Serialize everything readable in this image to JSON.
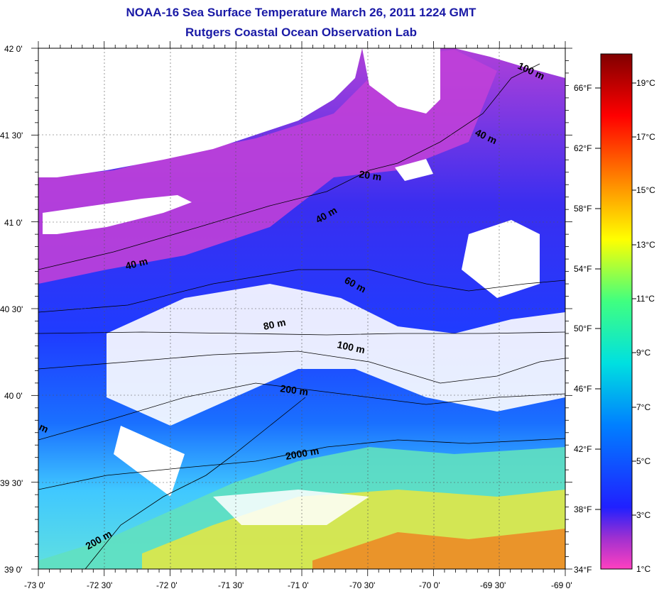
{
  "title": "NOAA-16 Sea Surface Temperature March 26, 2011 1224 GMT",
  "subtitle": "Rutgers Coastal Ocean Observation Lab",
  "lat_labels": [
    "42 0'",
    "41 30'",
    "41 0'",
    "40 30'",
    "40 0'",
    "39 30'",
    "39 0'"
  ],
  "lon_labels": [
    "-73 0'",
    "-72 30'",
    "-72 0'",
    "-71 30'",
    "-71 0'",
    "-70 30'",
    "-70 0'",
    "-69 30'",
    "-69 0'"
  ],
  "fahrenheit_labels": [
    "66°F",
    "62°F",
    "58°F",
    "54°F",
    "50°F",
    "46°F",
    "42°F",
    "38°F",
    "34°F"
  ],
  "celsius_labels": [
    "19°C",
    "17°C",
    "15°C",
    "13°C",
    "11°C",
    "9°C",
    "7°C",
    "5°C",
    "3°C",
    "1°C"
  ],
  "contour_labels": [
    "20 m",
    "40 m",
    "40 m",
    "40 m",
    "60 m",
    "80 m",
    "100 m",
    "200 m",
    "2000 m",
    "200 m",
    "m",
    "100 m"
  ],
  "colorbar": {
    "min_c": 1,
    "max_c": 20,
    "colors": [
      "#ff40c0",
      "#a030d0",
      "#2020ff",
      "#0080ff",
      "#00e0e0",
      "#40ff80",
      "#ffff00",
      "#ff8000",
      "#ff0000",
      "#800000"
    ]
  }
}
